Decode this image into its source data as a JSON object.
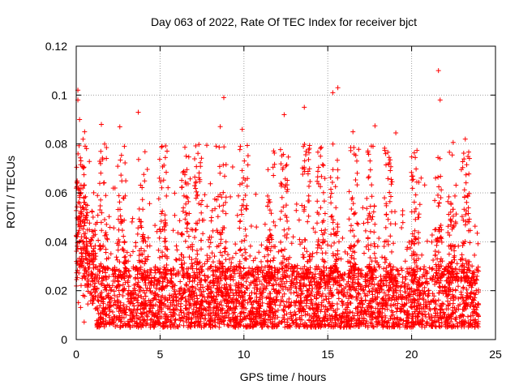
{
  "chart_data": {
    "type": "scatter",
    "title": "Day 063 of 2022, Rate Of TEC Index for receiver bjct",
    "xlabel": "GPS time / hours",
    "ylabel": "ROTI / TECUs",
    "xlim": [
      0,
      25
    ],
    "ylim": [
      0,
      0.12
    ],
    "x_ticks": [
      0,
      5,
      10,
      15,
      20,
      25
    ],
    "x_tick_labels": [
      "0",
      "5",
      "10",
      "15",
      "20",
      "25"
    ],
    "y_ticks": [
      0,
      0.02,
      0.04,
      0.06,
      0.08,
      0.1,
      0.12
    ],
    "y_tick_labels": [
      "0",
      "0.02",
      "0.04",
      "0.06",
      "0.08",
      "0.1",
      "0.12"
    ],
    "grid": true,
    "marker": "+",
    "color": "#ff0000",
    "series": [
      {
        "name": "ROTI",
        "x_range": [
          0,
          24
        ],
        "baseline_band": [
          0.005,
          0.03
        ],
        "notable_points": [
          {
            "x": 0.1,
            "y": 0.102
          },
          {
            "x": 0.1,
            "y": 0.098
          },
          {
            "x": 0.2,
            "y": 0.09
          },
          {
            "x": 0.5,
            "y": 0.085
          },
          {
            "x": 1.5,
            "y": 0.088
          },
          {
            "x": 2.6,
            "y": 0.087
          },
          {
            "x": 3.7,
            "y": 0.093
          },
          {
            "x": 8.8,
            "y": 0.099
          },
          {
            "x": 9.9,
            "y": 0.086
          },
          {
            "x": 12.4,
            "y": 0.092
          },
          {
            "x": 13.6,
            "y": 0.095
          },
          {
            "x": 15.3,
            "y": 0.101
          },
          {
            "x": 15.6,
            "y": 0.103
          },
          {
            "x": 16.5,
            "y": 0.085
          },
          {
            "x": 17.7,
            "y": 0.079
          },
          {
            "x": 21.6,
            "y": 0.11
          },
          {
            "x": 21.7,
            "y": 0.098
          },
          {
            "x": 23.2,
            "y": 0.082
          }
        ]
      }
    ]
  }
}
